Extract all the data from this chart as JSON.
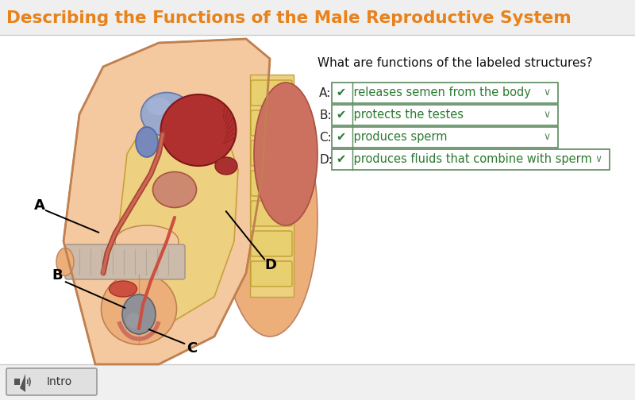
{
  "title": "Describing the Functions of the Male Reproductive System",
  "title_color": "#E8821A",
  "title_fontsize": 15.5,
  "background_color": "#FFFFFF",
  "header_bg": "#EFEFEF",
  "question_text": "What are functions of the labeled structures?",
  "answers": [
    {
      "label": "A:",
      "text": "✔  releases semen from the body",
      "dropdown": true
    },
    {
      "label": "B:",
      "text": "✔  protects the testes",
      "dropdown": true
    },
    {
      "label": "C:",
      "text": "✔  produces sperm",
      "dropdown": true
    },
    {
      "label": "D:",
      "text": "✔  produces fluids that combine with sperm",
      "dropdown": true
    }
  ],
  "answer_border_color": "#5a8a5e",
  "answer_text_color": "#2d7a32",
  "answer_bg": "#FFFFFF",
  "check_color": "#2d7a32",
  "dropdown_arrow_color": "#5a8a5e",
  "label_color": "#222222",
  "intro_btn_bg": "#E0E0E0",
  "intro_btn_border": "#999999",
  "fig_width": 8.0,
  "fig_height": 5.04,
  "dpi": 100,
  "skin_light": "#F5C9A0",
  "skin_mid": "#EDAF7A",
  "skin_dark": "#D4845A",
  "skin_outer": "#F0B87A",
  "yellow_inner": "#EDD080",
  "yellow_bone": "#D4B850",
  "red_organ": "#C04040",
  "red_dark": "#8C2020",
  "red_muscle": "#B03030",
  "blue_bladder": "#8899CC",
  "grey_testis": "#909098",
  "grey_dark": "#606068"
}
